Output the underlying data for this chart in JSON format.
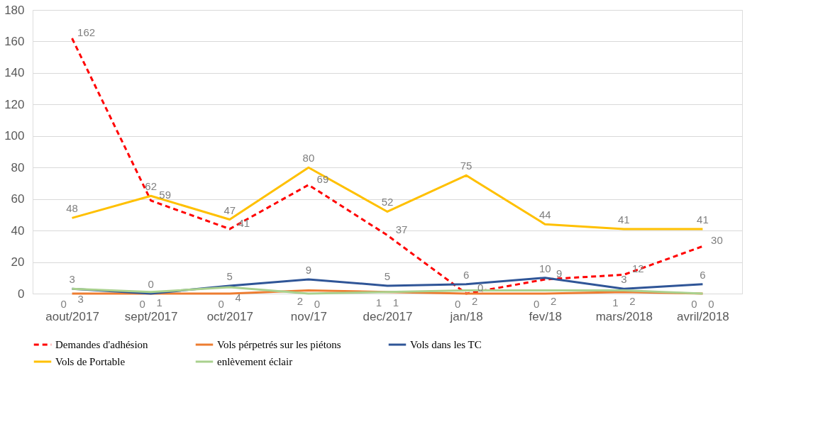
{
  "chart_data": {
    "type": "line",
    "categories": [
      "aout/2017",
      "sept/2017",
      "oct/2017",
      "nov/17",
      "dec/2017",
      "jan/18",
      "fev/18",
      "mars/2018",
      "avril/2018"
    ],
    "series": [
      {
        "name": "Demandes d'adhésion",
        "color": "#ff0000",
        "line_style": "dashed",
        "values": [
          162,
          59,
          41,
          69,
          37,
          0,
          9,
          12,
          30
        ]
      },
      {
        "name": "Vols pérpetrés sur les piétons",
        "color": "#ed7d31",
        "values": [
          0,
          0,
          0,
          2,
          1,
          0,
          0,
          1,
          0
        ]
      },
      {
        "name": "Vols dans les TC",
        "color": "#2f5597",
        "values": [
          3,
          0,
          5,
          9,
          5,
          6,
          10,
          3,
          6
        ]
      },
      {
        "name": "Vols de Portable",
        "color": "#ffc000",
        "values": [
          48,
          62,
          47,
          80,
          52,
          75,
          44,
          41,
          41
        ]
      },
      {
        "name": "enlèvement éclair",
        "color": "#a9d18e",
        "values": [
          3,
          1,
          4,
          0,
          1,
          2,
          2,
          2,
          0
        ]
      }
    ],
    "ylim": [
      0,
      180
    ],
    "yticks": [
      0,
      20,
      40,
      60,
      80,
      100,
      120,
      140,
      160,
      180
    ],
    "grid": "y",
    "legend": "bottom",
    "data_labels": true,
    "line_style": "solid",
    "marker": "none"
  }
}
